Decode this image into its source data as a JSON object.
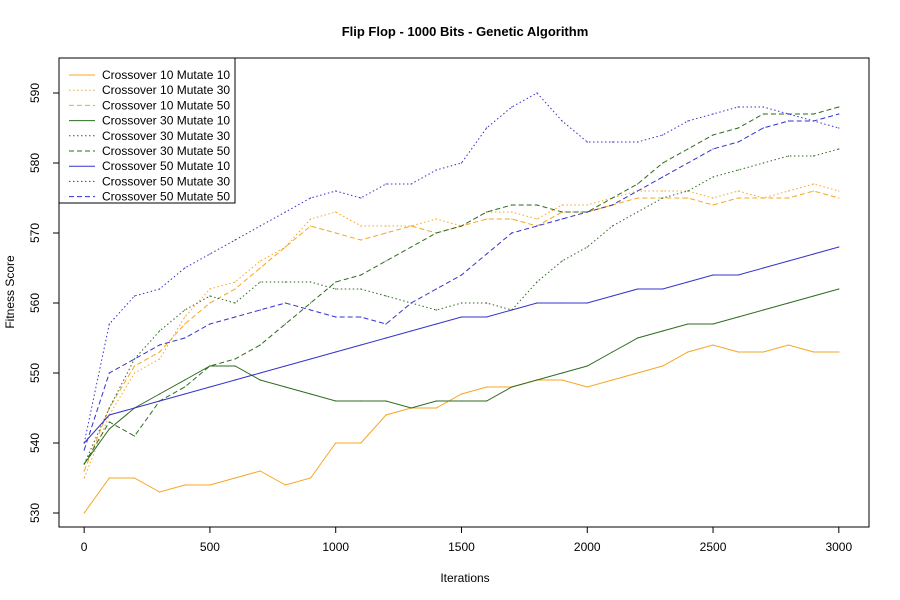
{
  "chart_data": {
    "type": "line",
    "title": "Flip Flop - 1000 Bits - Genetic Algorithm",
    "xlabel": "Iterations",
    "ylabel": "Fitness Score",
    "xlim": [
      -100,
      3120
    ],
    "ylim": [
      528,
      595
    ],
    "x_ticks": [
      0,
      500,
      1000,
      1500,
      2000,
      2500,
      3000
    ],
    "y_ticks": [
      530,
      540,
      550,
      560,
      570,
      580,
      590
    ],
    "legend_position": "top-left",
    "grid": false,
    "x": [
      0,
      100,
      200,
      300,
      400,
      500,
      600,
      700,
      800,
      900,
      1000,
      1100,
      1200,
      1300,
      1400,
      1500,
      1600,
      1700,
      1800,
      1900,
      2000,
      2100,
      2200,
      2300,
      2400,
      2500,
      2600,
      2700,
      2800,
      2900,
      3000
    ],
    "series": [
      {
        "name": "Crossover 10 Mutate 10",
        "color": "#f5a623",
        "dash": "solid",
        "values": [
          530,
          535,
          535,
          533,
          534,
          534,
          535,
          536,
          534,
          535,
          540,
          540,
          544,
          545,
          545,
          547,
          548,
          548,
          549,
          549,
          548,
          549,
          550,
          551,
          553,
          554,
          553,
          553,
          554,
          553,
          553
        ]
      },
      {
        "name": "Crossover 10 Mutate 30",
        "color": "#f5a623",
        "dash": "dotted",
        "values": [
          535,
          544,
          550,
          552,
          558,
          562,
          563,
          566,
          568,
          572,
          573,
          571,
          571,
          571,
          572,
          571,
          573,
          573,
          572,
          574,
          574,
          575,
          576,
          576,
          576,
          575,
          576,
          575,
          576,
          577,
          576
        ]
      },
      {
        "name": "Crossover 10 Mutate 50",
        "color": "#f5a623",
        "dash": "dashed",
        "values": [
          536,
          545,
          551,
          553,
          557,
          560,
          562,
          565,
          568,
          571,
          570,
          569,
          570,
          571,
          570,
          571,
          572,
          572,
          571,
          573,
          573,
          574,
          575,
          575,
          575,
          574,
          575,
          575,
          575,
          576,
          575
        ]
      },
      {
        "name": "Crossover 30 Mutate 10",
        "color": "#2e6b1f",
        "dash": "solid",
        "values": [
          537,
          542,
          545,
          547,
          549,
          551,
          551,
          549,
          548,
          547,
          546,
          546,
          546,
          545,
          546,
          546,
          546,
          548,
          549,
          550,
          551,
          553,
          555,
          556,
          557,
          557,
          558,
          559,
          560,
          561,
          562
        ]
      },
      {
        "name": "Crossover 30 Mutate 30",
        "color": "#2e6b1f",
        "dash": "dotted",
        "values": [
          537,
          545,
          552,
          556,
          559,
          561,
          560,
          563,
          563,
          563,
          562,
          562,
          561,
          560,
          559,
          560,
          560,
          559,
          563,
          566,
          568,
          571,
          573,
          575,
          576,
          578,
          579,
          580,
          581,
          581,
          582
        ]
      },
      {
        "name": "Crossover 30 Mutate 50",
        "color": "#2e6b1f",
        "dash": "dashed",
        "values": [
          537,
          543,
          541,
          546,
          548,
          551,
          552,
          554,
          557,
          560,
          563,
          564,
          566,
          568,
          570,
          571,
          573,
          574,
          574,
          573,
          573,
          575,
          577,
          580,
          582,
          584,
          585,
          587,
          587,
          587,
          588
        ]
      },
      {
        "name": "Crossover 50 Mutate 10",
        "color": "#3333cc",
        "dash": "solid",
        "values": [
          540,
          544,
          545,
          546,
          547,
          548,
          549,
          550,
          551,
          552,
          553,
          554,
          555,
          556,
          557,
          558,
          558,
          559,
          560,
          560,
          560,
          561,
          562,
          562,
          563,
          564,
          564,
          565,
          566,
          567,
          568
        ]
      },
      {
        "name": "Crossover 50 Mutate 30",
        "color": "#3333cc",
        "dash": "dotted",
        "values": [
          540,
          557,
          561,
          562,
          565,
          567,
          569,
          571,
          573,
          575,
          576,
          575,
          577,
          577,
          579,
          580,
          585,
          588,
          590,
          586,
          583,
          583,
          583,
          584,
          586,
          587,
          588,
          588,
          587,
          586,
          585
        ]
      },
      {
        "name": "Crossover 50 Mutate 50",
        "color": "#3333cc",
        "dash": "dashed",
        "values": [
          539,
          550,
          552,
          554,
          555,
          557,
          558,
          559,
          560,
          559,
          558,
          558,
          557,
          560,
          562,
          564,
          567,
          570,
          571,
          572,
          573,
          574,
          576,
          578,
          580,
          582,
          583,
          585,
          586,
          586,
          587
        ]
      }
    ]
  }
}
